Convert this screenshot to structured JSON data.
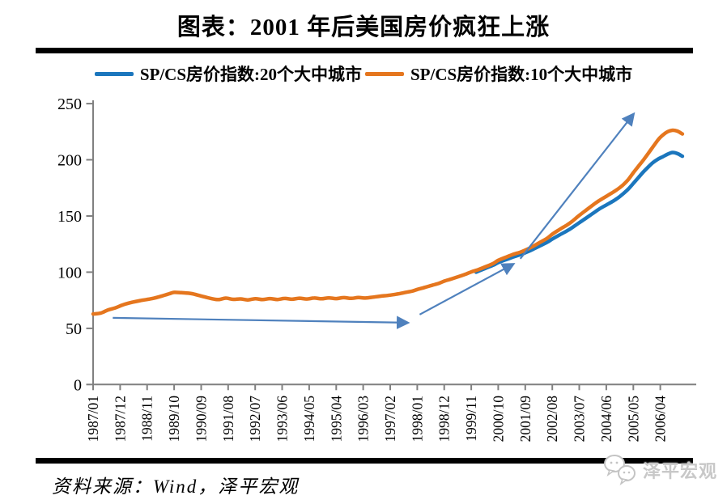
{
  "title": "图表：2001 年后美国房价疯狂上涨",
  "legend": {
    "items": [
      {
        "label": "SP/CS房价指数:20个大中城市",
        "color": "#1b76bd"
      },
      {
        "label": "SP/CS房价指数:10个大中城市",
        "color": "#e5761e"
      }
    ]
  },
  "source": "资料来源：Wind，泽平宏观",
  "watermark": "泽平宏观",
  "colors": {
    "series_20city": "#1b76bd",
    "series_10city": "#e5761e",
    "annotation_arrow": "#4f81bd",
    "axis": "#808080",
    "divider": "#000000"
  },
  "chart_data": {
    "type": "line",
    "title": "图表：2001 年后美国房价疯狂上涨",
    "xlabel": "",
    "ylabel": "",
    "x_unit": "months since 1987/01",
    "x_axis": {
      "tick_labels": [
        "1987/01",
        "1987/12",
        "1988/11",
        "1989/10",
        "1990/09",
        "1991/08",
        "1992/07",
        "1993/06",
        "1994/05",
        "1995/04",
        "1996/03",
        "1997/02",
        "1998/01",
        "1998/12",
        "1999/11",
        "2000/10",
        "2001/09",
        "2002/08",
        "2003/07",
        "2004/06",
        "2005/05",
        "2006/04"
      ],
      "months_per_tick": 11
    },
    "y_axis": {
      "ticks": [
        0,
        50,
        100,
        150,
        200,
        250
      ],
      "range": [
        0,
        250
      ]
    },
    "grid": false,
    "legend_position": "top",
    "series": [
      {
        "name": "SP/CS房价指数:20个大中城市",
        "color": "#1b76bd",
        "points": [
          [
            156,
            100.0
          ],
          [
            158,
            101.8
          ],
          [
            160,
            103.6
          ],
          [
            163,
            106.3
          ],
          [
            165,
            108.5
          ],
          [
            168,
            111.0
          ],
          [
            171,
            113.4
          ],
          [
            174,
            115.6
          ],
          [
            176,
            117.3
          ],
          [
            179,
            120.2
          ],
          [
            182,
            123.4
          ],
          [
            185,
            126.7
          ],
          [
            187,
            129.5
          ],
          [
            190,
            133.2
          ],
          [
            193,
            136.8
          ],
          [
            195,
            139.5
          ],
          [
            198,
            144.0
          ],
          [
            201,
            148.5
          ],
          [
            204,
            153.0
          ],
          [
            206,
            156.0
          ],
          [
            209,
            159.8
          ],
          [
            212,
            163.5
          ],
          [
            214,
            166.5
          ],
          [
            216,
            170.0
          ],
          [
            218,
            174.0
          ],
          [
            220,
            179.0
          ],
          [
            222,
            184.0
          ],
          [
            224,
            189.0
          ],
          [
            226,
            193.5
          ],
          [
            228,
            197.5
          ],
          [
            230,
            200.5
          ],
          [
            232,
            202.8
          ],
          [
            234,
            205.0
          ],
          [
            236,
            206.5
          ],
          [
            238,
            205.5
          ],
          [
            240,
            203.2
          ]
        ]
      },
      {
        "name": "SP/CS房价指数:10个大中城市",
        "color": "#e5761e",
        "points": [
          [
            0,
            62.8
          ],
          [
            3,
            63.5
          ],
          [
            6,
            66.3
          ],
          [
            9,
            68.2
          ],
          [
            12,
            70.8
          ],
          [
            16,
            73.2
          ],
          [
            20,
            75.0
          ],
          [
            24,
            76.5
          ],
          [
            28,
            78.8
          ],
          [
            31,
            80.8
          ],
          [
            33,
            82.0
          ],
          [
            36,
            81.7
          ],
          [
            40,
            80.9
          ],
          [
            44,
            78.8
          ],
          [
            48,
            76.6
          ],
          [
            51,
            75.6
          ],
          [
            54,
            76.9
          ],
          [
            57,
            75.8
          ],
          [
            60,
            76.2
          ],
          [
            63,
            75.3
          ],
          [
            66,
            76.4
          ],
          [
            69,
            75.6
          ],
          [
            72,
            76.5
          ],
          [
            75,
            75.7
          ],
          [
            78,
            76.6
          ],
          [
            81,
            75.9
          ],
          [
            84,
            76.8
          ],
          [
            87,
            76.1
          ],
          [
            90,
            77.0
          ],
          [
            93,
            76.3
          ],
          [
            96,
            77.1
          ],
          [
            99,
            76.5
          ],
          [
            102,
            77.3
          ],
          [
            105,
            76.7
          ],
          [
            108,
            77.4
          ],
          [
            111,
            77.0
          ],
          [
            114,
            77.8
          ],
          [
            117,
            78.6
          ],
          [
            121,
            79.6
          ],
          [
            124,
            80.6
          ],
          [
            127,
            81.9
          ],
          [
            130,
            83.2
          ],
          [
            132,
            84.6
          ],
          [
            135,
            86.4
          ],
          [
            138,
            88.3
          ],
          [
            141,
            90.2
          ],
          [
            143,
            92.0
          ],
          [
            146,
            94.0
          ],
          [
            149,
            96.2
          ],
          [
            152,
            98.4
          ],
          [
            154,
            100.2
          ],
          [
            157,
            102.4
          ],
          [
            160,
            105.0
          ],
          [
            163,
            107.8
          ],
          [
            165,
            110.5
          ],
          [
            168,
            113.2
          ],
          [
            171,
            115.8
          ],
          [
            174,
            117.8
          ],
          [
            176,
            119.6
          ],
          [
            179,
            122.8
          ],
          [
            182,
            126.5
          ],
          [
            185,
            130.3
          ],
          [
            187,
            133.8
          ],
          [
            190,
            138.0
          ],
          [
            193,
            142.0
          ],
          [
            195,
            145.0
          ],
          [
            198,
            150.5
          ],
          [
            201,
            155.5
          ],
          [
            204,
            160.5
          ],
          [
            206,
            163.5
          ],
          [
            209,
            167.5
          ],
          [
            212,
            171.5
          ],
          [
            214,
            174.5
          ],
          [
            216,
            178.0
          ],
          [
            218,
            182.5
          ],
          [
            220,
            188.5
          ],
          [
            222,
            194.0
          ],
          [
            224,
            199.5
          ],
          [
            226,
            205.5
          ],
          [
            228,
            211.5
          ],
          [
            230,
            217.5
          ],
          [
            231,
            220.0
          ],
          [
            232,
            222.0
          ],
          [
            234,
            225.0
          ],
          [
            236,
            226.3
          ],
          [
            238,
            225.5
          ],
          [
            240,
            223.0
          ]
        ]
      }
    ],
    "annotations": {
      "arrow_color": "#4f81bd",
      "arrows": [
        {
          "from": [
            8,
            59.3
          ],
          "to": [
            128,
            55.0
          ]
        },
        {
          "from": [
            133,
            62.3
          ],
          "to": [
            171,
            107.0
          ]
        },
        {
          "from": [
            174,
            112.0
          ],
          "to": [
            220,
            240.5
          ]
        }
      ]
    }
  }
}
